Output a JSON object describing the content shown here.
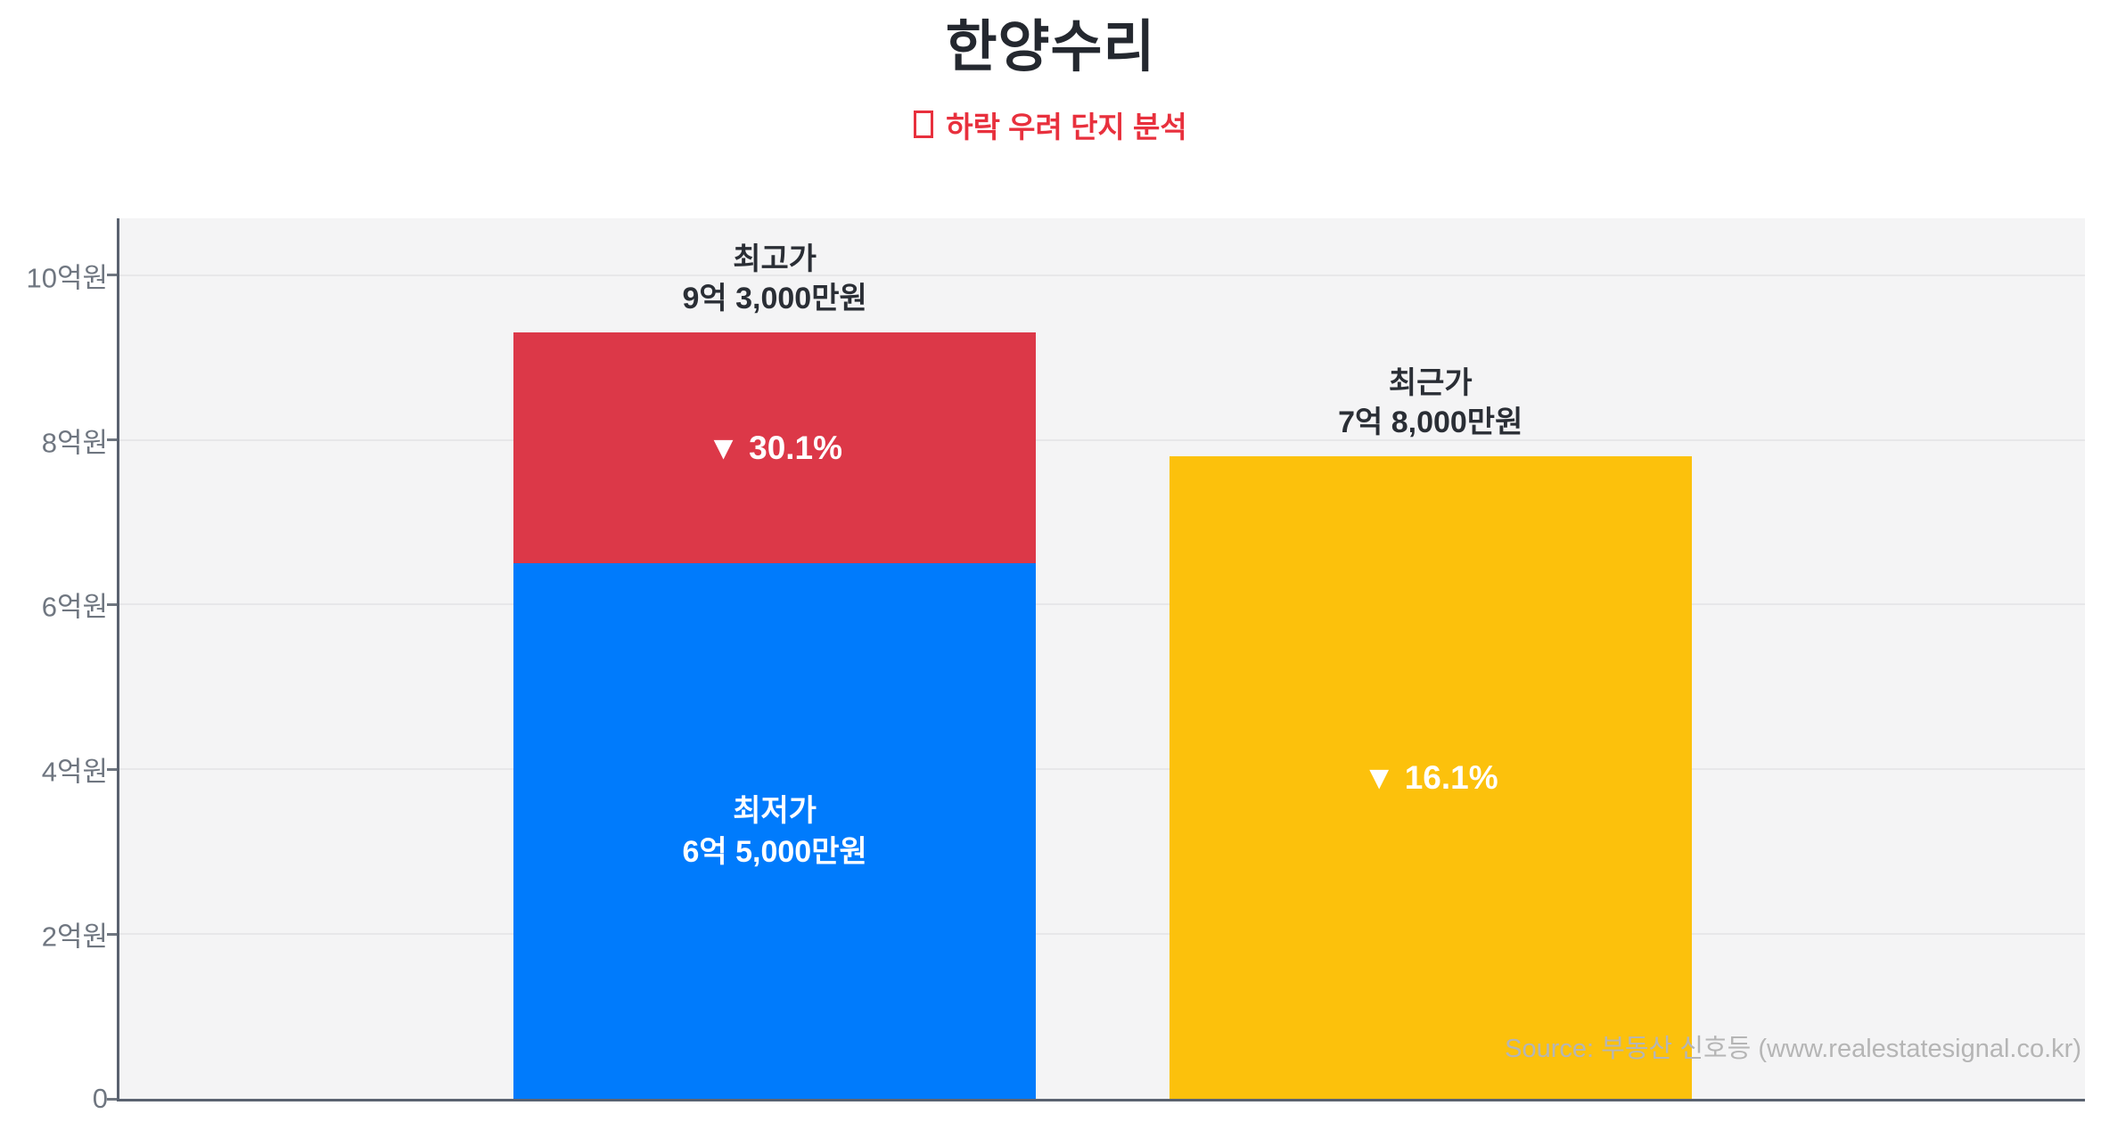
{
  "header": {
    "title": "한양수리",
    "subtitle": "하락 우려 단지 분석"
  },
  "footer": {
    "source": "Source: 부동산 신호등 (www.realestatesignal.co.kr)"
  },
  "colors": {
    "title": "#24282f",
    "subtitle": "#e8303d",
    "plot_background": "#f4f4f5",
    "gridline": "#e7e7e9",
    "axis": "#5a6270",
    "tick_label": "#6f7680",
    "annotation_text": "#2a2e35",
    "source_text": "#b5b5b5",
    "lowest_price_blue": "#007bfc",
    "highest_price_red": "#dc3848",
    "recent_price_yellow": "#fcc10c"
  },
  "chart_data": {
    "type": "bar",
    "subtype": "stacked",
    "title": "한양수리",
    "unit": "억원",
    "ylim": [
      0,
      10.69
    ],
    "yticks": [
      0,
      2,
      4,
      6,
      8,
      10
    ],
    "ytick_labels": [
      "0",
      "2억원",
      "4억원",
      "6억원",
      "8억원",
      "10억원"
    ],
    "grid": true,
    "legend": "none",
    "bars": [
      {
        "name": "최고가-최저가",
        "annotation_lines": [
          "최고가",
          "9억 3,000만원"
        ],
        "segments": [
          {
            "name": "최저가",
            "from": 0,
            "to": 6.5,
            "value_text": "6억 5,000만원",
            "label_lines": [
              "최저가",
              "6억 5,000만원"
            ],
            "color": "#007bfc",
            "text_color": "#ffffff"
          },
          {
            "name": "최고가-하락폭",
            "from": 6.5,
            "to": 9.3,
            "value_text": "9억 3,000만원",
            "label_lines": [
              "▼ 30.1%"
            ],
            "color": "#dc3848",
            "text_color": "#ffffff"
          }
        ]
      },
      {
        "name": "최근가",
        "annotation_lines": [
          "최근가",
          "7억 8,000만원"
        ],
        "segments": [
          {
            "name": "최근가-하락폭",
            "from": 0,
            "to": 7.8,
            "value_text": "7억 8,000만원",
            "label_lines": [
              "▼ 16.1%"
            ],
            "color": "#fcc10c",
            "text_color": "#ffffff"
          }
        ]
      }
    ]
  }
}
